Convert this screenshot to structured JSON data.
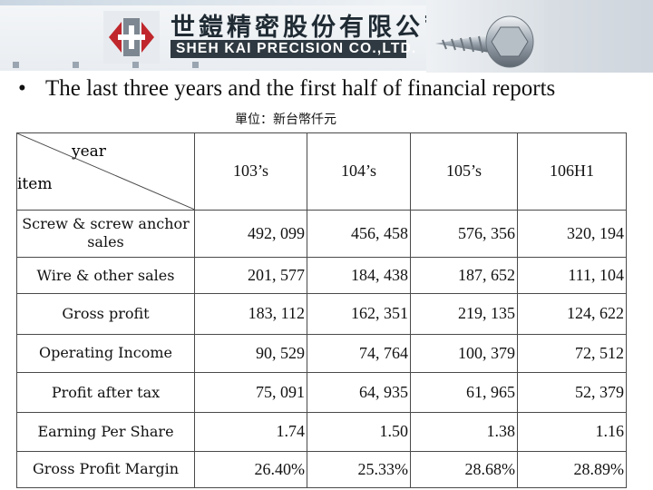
{
  "header": {
    "company_zh": "世鎧精密股份有限公司",
    "company_en": "SHEH KAI PRECISION CO.,LTD."
  },
  "slide": {
    "bullet": "The last three years and the first half of financial reports",
    "unit": "單位：新台幣仟元"
  },
  "table": {
    "corner_top": "year",
    "corner_bottom": "item",
    "columns": [
      "103’s",
      "104’s",
      "105’s",
      "106H1"
    ],
    "rows": [
      {
        "label": "Screw & screw anchor sales",
        "values": [
          "492, 099",
          "456, 458",
          "576, 356",
          "320, 194"
        ]
      },
      {
        "label": "Wire & other sales",
        "values": [
          "201, 577",
          "184, 438",
          "187, 652",
          "111, 104"
        ]
      },
      {
        "label": "Gross profit",
        "values": [
          "183, 112",
          "162, 351",
          "219, 135",
          "124, 622"
        ]
      },
      {
        "label": "Operating Income",
        "values": [
          "90, 529",
          "74, 764",
          "100, 379",
          "72, 512"
        ]
      },
      {
        "label": "Profit after tax",
        "values": [
          "75, 091",
          "64, 935",
          "61, 965",
          "52, 379"
        ]
      },
      {
        "label": "Earning Per Share",
        "values": [
          "1.74",
          "1.50",
          "1.38",
          "1.16"
        ]
      },
      {
        "label": "Gross Profit Margin",
        "values": [
          "26.40%",
          "25.33%",
          "28.68%",
          "28.89%"
        ]
      }
    ]
  },
  "colors": {
    "logo_red": "#c0272d",
    "logo_grey": "#7d8791",
    "header_bar": "#2f3941"
  },
  "icons": {
    "logo": "company-logo-icon",
    "photo": "screw-photo"
  }
}
